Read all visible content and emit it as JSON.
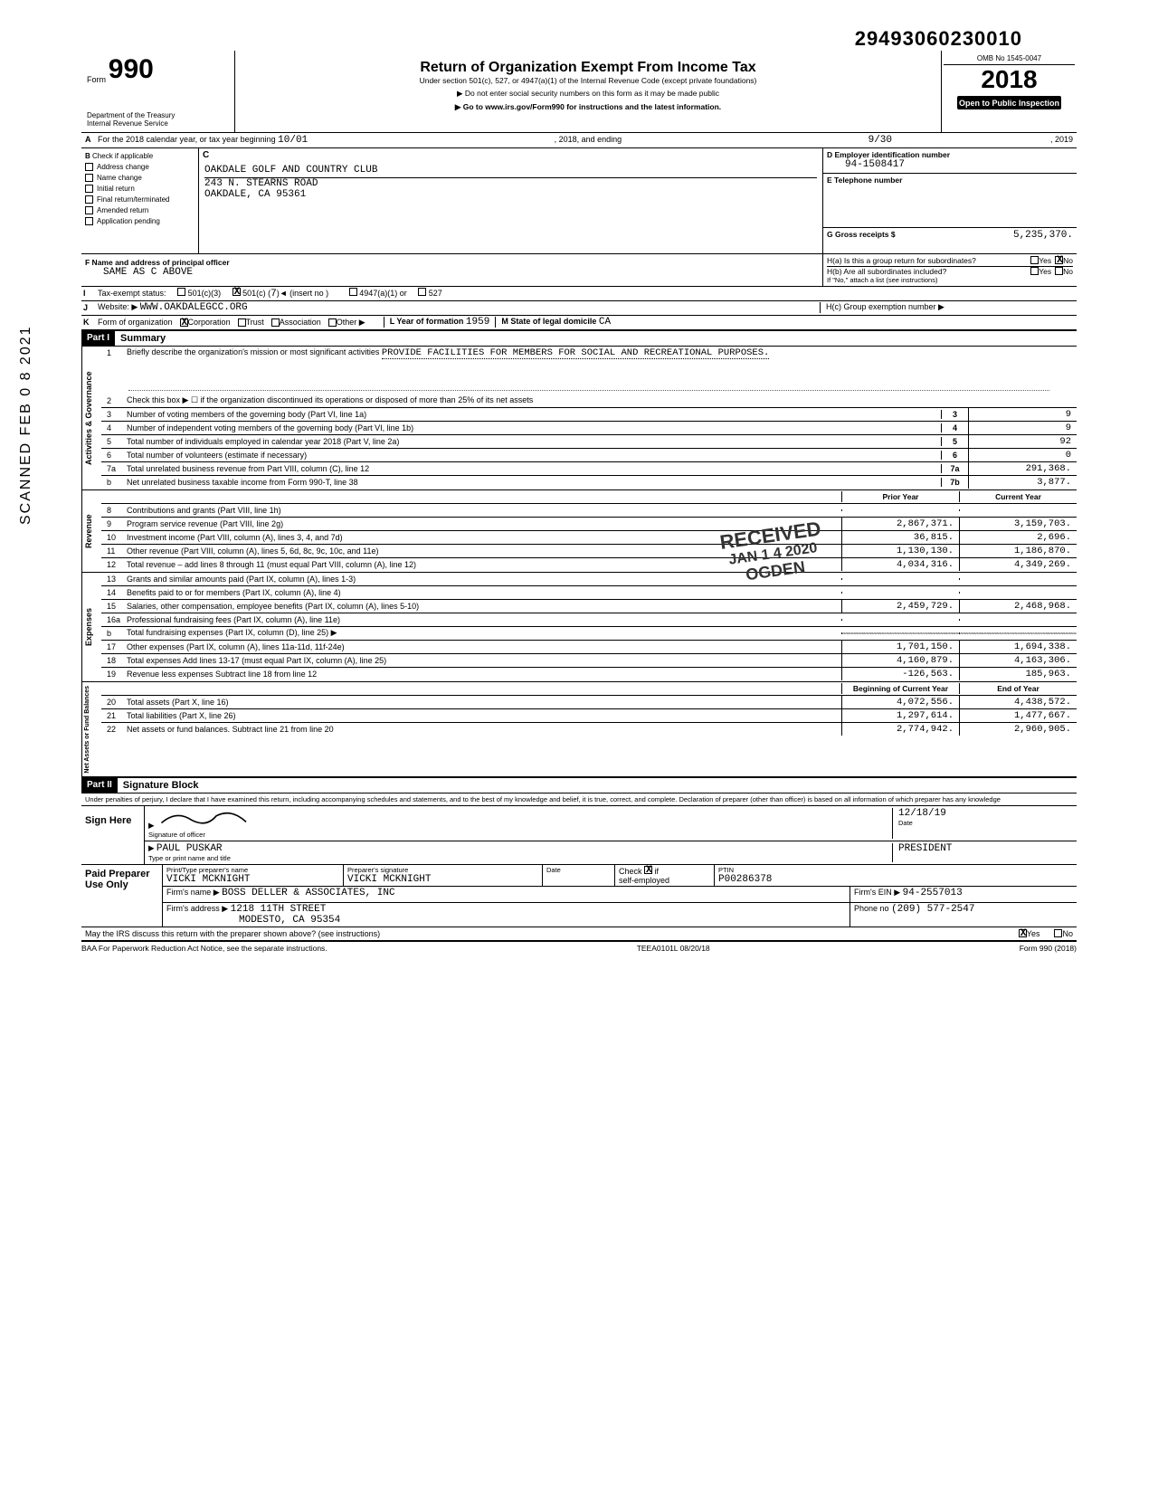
{
  "top_number": "29493060230010",
  "omb": "OMB No 1545-0047",
  "form_number": "990",
  "form_label": "Form",
  "title_main": "Return of Organization Exempt From Income Tax",
  "title_sub": "Under section 501(c), 527, or 4947(a)(1) of the Internal Revenue Code (except private foundations)",
  "arrow1": "▶ Do not enter social security numbers on this form as it may be made public",
  "arrow2": "▶ Go to www.irs.gov/Form990 for instructions and the latest information.",
  "dept1": "Department of the Treasury",
  "dept2": "Internal Revenue Service",
  "year": "2018",
  "public": "Open to Public Inspection",
  "row_a": {
    "label": "A",
    "text1": "For the 2018 calendar year, or tax year beginning",
    "begin": "10/01",
    "mid": ", 2018, and ending",
    "end": "9/30",
    "tail": ", 2019"
  },
  "section_b": {
    "label": "B",
    "check_label": "Check if applicable",
    "items": [
      "Address change",
      "Name change",
      "Initial return",
      "Final return/terminated",
      "Amended return",
      "Application pending"
    ],
    "c_label": "C",
    "org_name": "OAKDALE GOLF AND COUNTRY CLUB",
    "addr1": "243 N. STEARNS ROAD",
    "addr2": "OAKDALE, CA 95361",
    "d_label": "D Employer identification number",
    "ein": "94-1508417",
    "e_label": "E Telephone number",
    "g_label": "G Gross receipts $",
    "gross": "5,235,370.",
    "f_label": "F Name and address of principal officer",
    "f_value": "SAME AS C ABOVE",
    "ha": "H(a) Is this a group return for subordinates?",
    "hb": "H(b) Are all subordinates included?",
    "hb_note": "If \"No,\" attach a list (see instructions)",
    "yes": "Yes",
    "no": "No"
  },
  "row_i": {
    "label": "I",
    "text": "Tax-exempt status:",
    "opts": [
      "501(c)(3)",
      "501(c) (",
      "7",
      ")◄ (insert no )",
      "4947(a)(1) or",
      "527"
    ]
  },
  "row_j": {
    "label": "J",
    "text": "Website: ▶",
    "val": "WWW.OAKDALEGCC.ORG",
    "hc": "H(c) Group exemption number ▶"
  },
  "row_k": {
    "label": "K",
    "text": "Form of organization",
    "opts": [
      "Corporation",
      "Trust",
      "Association",
      "Other ▶"
    ],
    "l": "L Year of formation",
    "lval": "1959",
    "m": "M State of legal domicile",
    "mval": "CA"
  },
  "part1": {
    "hdr": "Part I",
    "title": "Summary",
    "mission_label": "Briefly describe the organization's mission or most significant activities",
    "mission": "PROVIDE FACILITIES FOR MEMBERS FOR SOCIAL AND RECREATIONAL PURPOSES.",
    "gov": "Activities & Governance",
    "rev": "Revenue",
    "exp": "Expenses",
    "net": "Net Assets or Fund Balances",
    "lines_gov": [
      {
        "n": "2",
        "d": "Check this box ▶ ☐ if the organization discontinued its operations or disposed of more than 25% of its net assets"
      },
      {
        "n": "3",
        "d": "Number of voting members of the governing body (Part VI, line 1a)",
        "cn": "3",
        "cv": "9"
      },
      {
        "n": "4",
        "d": "Number of independent voting members of the governing body (Part VI, line 1b)",
        "cn": "4",
        "cv": "9"
      },
      {
        "n": "5",
        "d": "Total number of individuals employed in calendar year 2018 (Part V, line 2a)",
        "cn": "5",
        "cv": "92"
      },
      {
        "n": "6",
        "d": "Total number of volunteers (estimate if necessary)",
        "cn": "6",
        "cv": "0"
      },
      {
        "n": "7a",
        "d": "Total unrelated business revenue from Part VIII, column (C), line 12",
        "cn": "7a",
        "cv": "291,368."
      },
      {
        "n": "b",
        "d": "Net unrelated business taxable income from Form 990-T, line 38",
        "cn": "7b",
        "cv": "3,877."
      }
    ],
    "rev_hdr_a": "Prior Year",
    "rev_hdr_b": "Current Year",
    "lines_rev": [
      {
        "n": "8",
        "d": "Contributions and grants (Part VIII, line 1h)",
        "a": "",
        "b": ""
      },
      {
        "n": "9",
        "d": "Program service revenue (Part VIII, line 2g)",
        "a": "2,867,371.",
        "b": "3,159,703."
      },
      {
        "n": "10",
        "d": "Investment income (Part VIII, column (A), lines 3, 4, and 7d)",
        "a": "36,815.",
        "b": "2,696."
      },
      {
        "n": "11",
        "d": "Other revenue (Part VIII, column (A), lines 5, 6d, 8c, 9c, 10c, and 11e)",
        "a": "1,130,130.",
        "b": "1,186,870."
      },
      {
        "n": "12",
        "d": "Total revenue – add lines 8 through 11 (must equal Part VIII, column (A), line 12)",
        "a": "4,034,316.",
        "b": "4,349,269."
      }
    ],
    "lines_exp": [
      {
        "n": "13",
        "d": "Grants and similar amounts paid (Part IX, column (A), lines 1-3)",
        "a": "",
        "b": ""
      },
      {
        "n": "14",
        "d": "Benefits paid to or for members (Part IX, column (A), line 4)",
        "a": "",
        "b": ""
      },
      {
        "n": "15",
        "d": "Salaries, other compensation, employee benefits (Part IX, column (A), lines 5-10)",
        "a": "2,459,729.",
        "b": "2,468,968."
      },
      {
        "n": "16a",
        "d": "Professional fundraising fees (Part IX, column (A), line 11e)",
        "a": "",
        "b": ""
      },
      {
        "n": "b",
        "d": "Total fundraising expenses (Part IX, column (D), line 25) ▶",
        "shaded": true
      },
      {
        "n": "17",
        "d": "Other expenses (Part IX, column (A), lines 11a-11d, 11f-24e)",
        "a": "1,701,150.",
        "b": "1,694,338."
      },
      {
        "n": "18",
        "d": "Total expenses Add lines 13-17 (must equal Part IX, column (A), line 25)",
        "a": "4,160,879.",
        "b": "4,163,306."
      },
      {
        "n": "19",
        "d": "Revenue less expenses Subtract line 18 from line 12",
        "a": "-126,563.",
        "b": "185,963."
      }
    ],
    "net_hdr_a": "Beginning of Current Year",
    "net_hdr_b": "End of Year",
    "lines_net": [
      {
        "n": "20",
        "d": "Total assets (Part X, line 16)",
        "a": "4,072,556.",
        "b": "4,438,572."
      },
      {
        "n": "21",
        "d": "Total liabilities (Part X, line 26)",
        "a": "1,297,614.",
        "b": "1,477,667."
      },
      {
        "n": "22",
        "d": "Net assets or fund balances. Subtract line 21 from line 20",
        "a": "2,774,942.",
        "b": "2,960,905."
      }
    ]
  },
  "part2": {
    "hdr": "Part II",
    "title": "Signature Block",
    "perjury": "Under penalties of perjury, I declare that I have examined this return, including accompanying schedules and statements, and to the best of my knowledge and belief, it is true, correct, and complete. Declaration of preparer (other than officer) is based on all information of which preparer has any knowledge",
    "sign_here": "Sign Here",
    "sig_officer": "Signature of officer",
    "date": "Date",
    "date_val": "12/18/19",
    "name": "PAUL PUSKAR",
    "name_label": "Type or print name and title",
    "title_val": "PRESIDENT",
    "paid": "Paid Preparer Use Only",
    "prep_name_label": "Print/Type preparer's name",
    "prep_name": "VICKI MCKNIGHT",
    "prep_sig_label": "Preparer's signature",
    "prep_sig": "VICKI MCKNIGHT",
    "prep_date": "Date",
    "check": "Check",
    "if": "if",
    "self": "self-employed",
    "ptin_label": "PTIN",
    "ptin": "P00286378",
    "firm_name_label": "Firm's name ▶",
    "firm_name": "BOSS DELLER & ASSOCIATES, INC",
    "firm_addr_label": "Firm's address ▶",
    "firm_addr1": "1218 11TH STREET",
    "firm_addr2": "MODESTO, CA 95354",
    "firm_ein_label": "Firm's EIN ▶",
    "firm_ein": "94-2557013",
    "phone_label": "Phone no",
    "phone": "(209) 577-2547",
    "discuss": "May the IRS discuss this return with the preparer shown above? (see instructions)",
    "yes": "Yes",
    "no": "No"
  },
  "footer": {
    "baa": "BAA For Paperwork Reduction Act Notice, see the separate instructions.",
    "code": "TEEA0101L 08/20/18",
    "form": "Form 990 (2018)"
  },
  "stamp": {
    "l1": "RECEIVED",
    "l2": "JAN 1 4 2020",
    "l3": "OGDEN"
  },
  "vertical": "SCANNED  FEB 0 8 2021"
}
